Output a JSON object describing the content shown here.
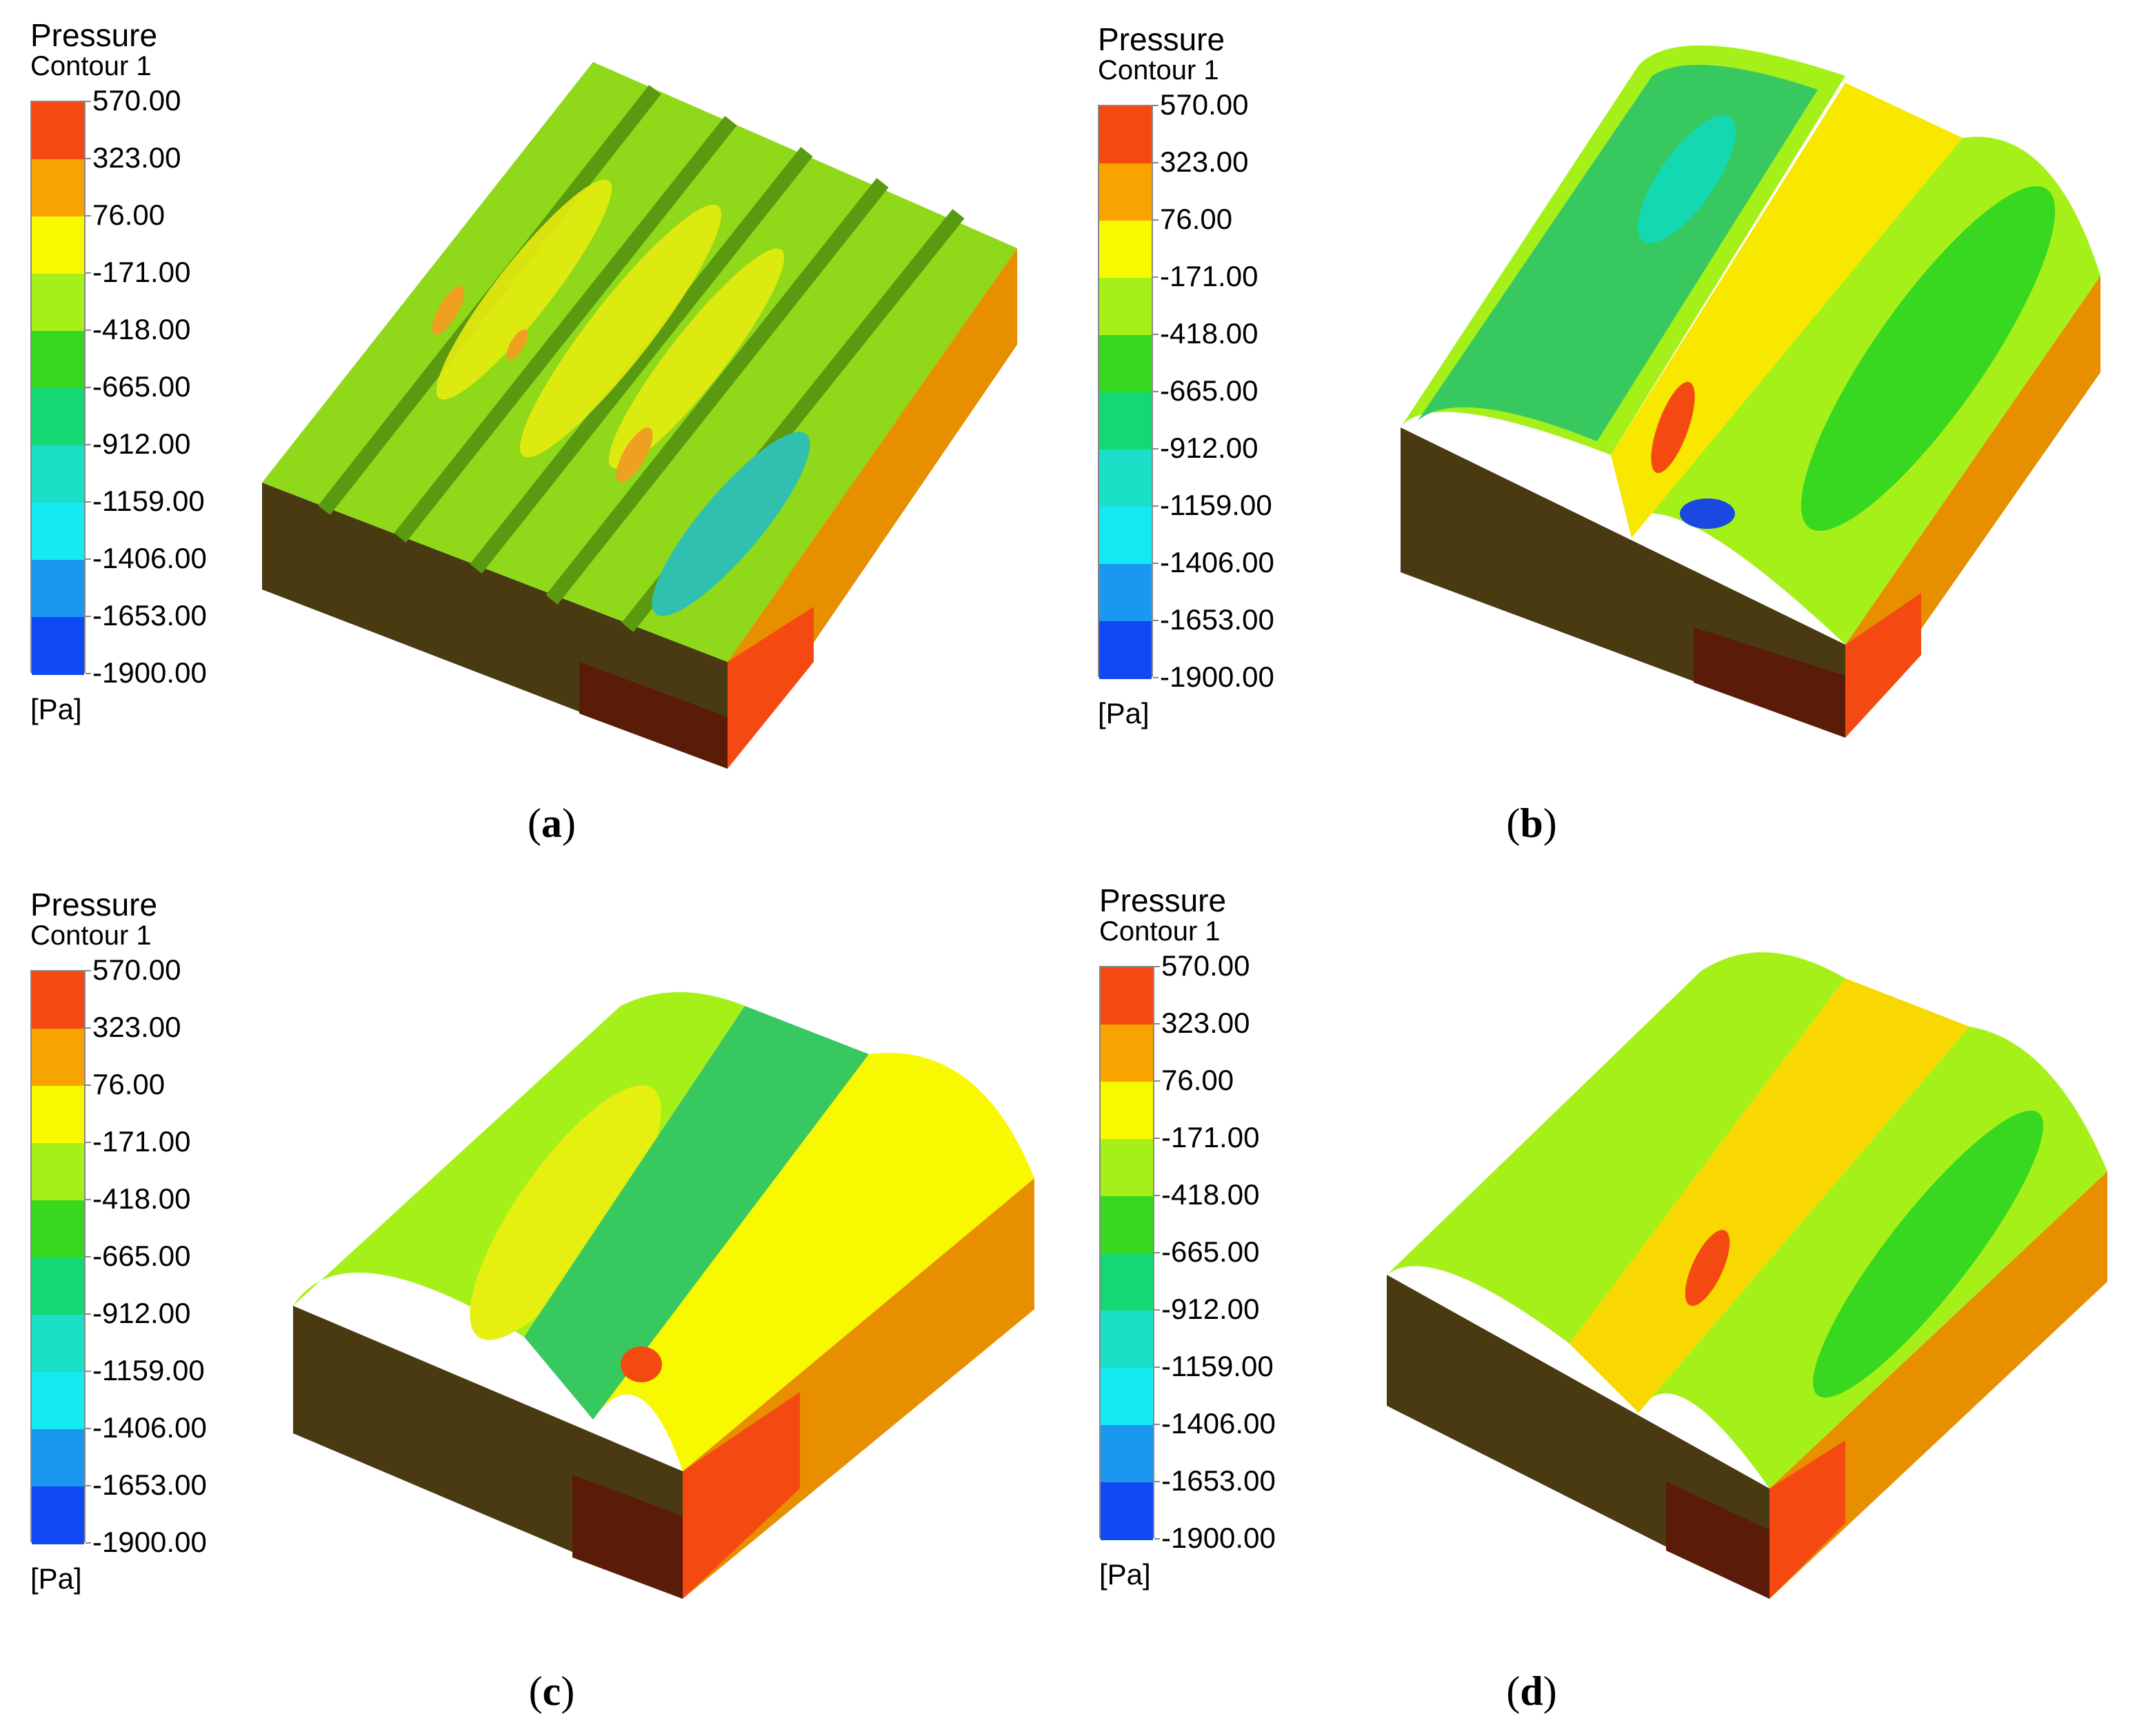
{
  "legend": {
    "title": "Pressure",
    "subtitle": "Contour 1",
    "unit": "[Pa]",
    "ticks": [
      "570.00",
      "323.00",
      "76.00",
      "-171.00",
      "-418.00",
      "-665.00",
      "-912.00",
      "-1159.00",
      "-1406.00",
      "-1653.00",
      "-1900.00"
    ],
    "colors": [
      "#f44a12",
      "#f7a400",
      "#f8f800",
      "#a6f01a",
      "#38d820",
      "#14d873",
      "#1ae0c8",
      "#15eaf4",
      "#1a98f0",
      "#1048f4"
    ]
  },
  "panels": [
    {
      "id": "a",
      "caption_letter": "a"
    },
    {
      "id": "b",
      "caption_letter": "b"
    },
    {
      "id": "c",
      "caption_letter": "c"
    },
    {
      "id": "d",
      "caption_letter": "d"
    }
  ],
  "caption_open": "(",
  "caption_close": ")"
}
